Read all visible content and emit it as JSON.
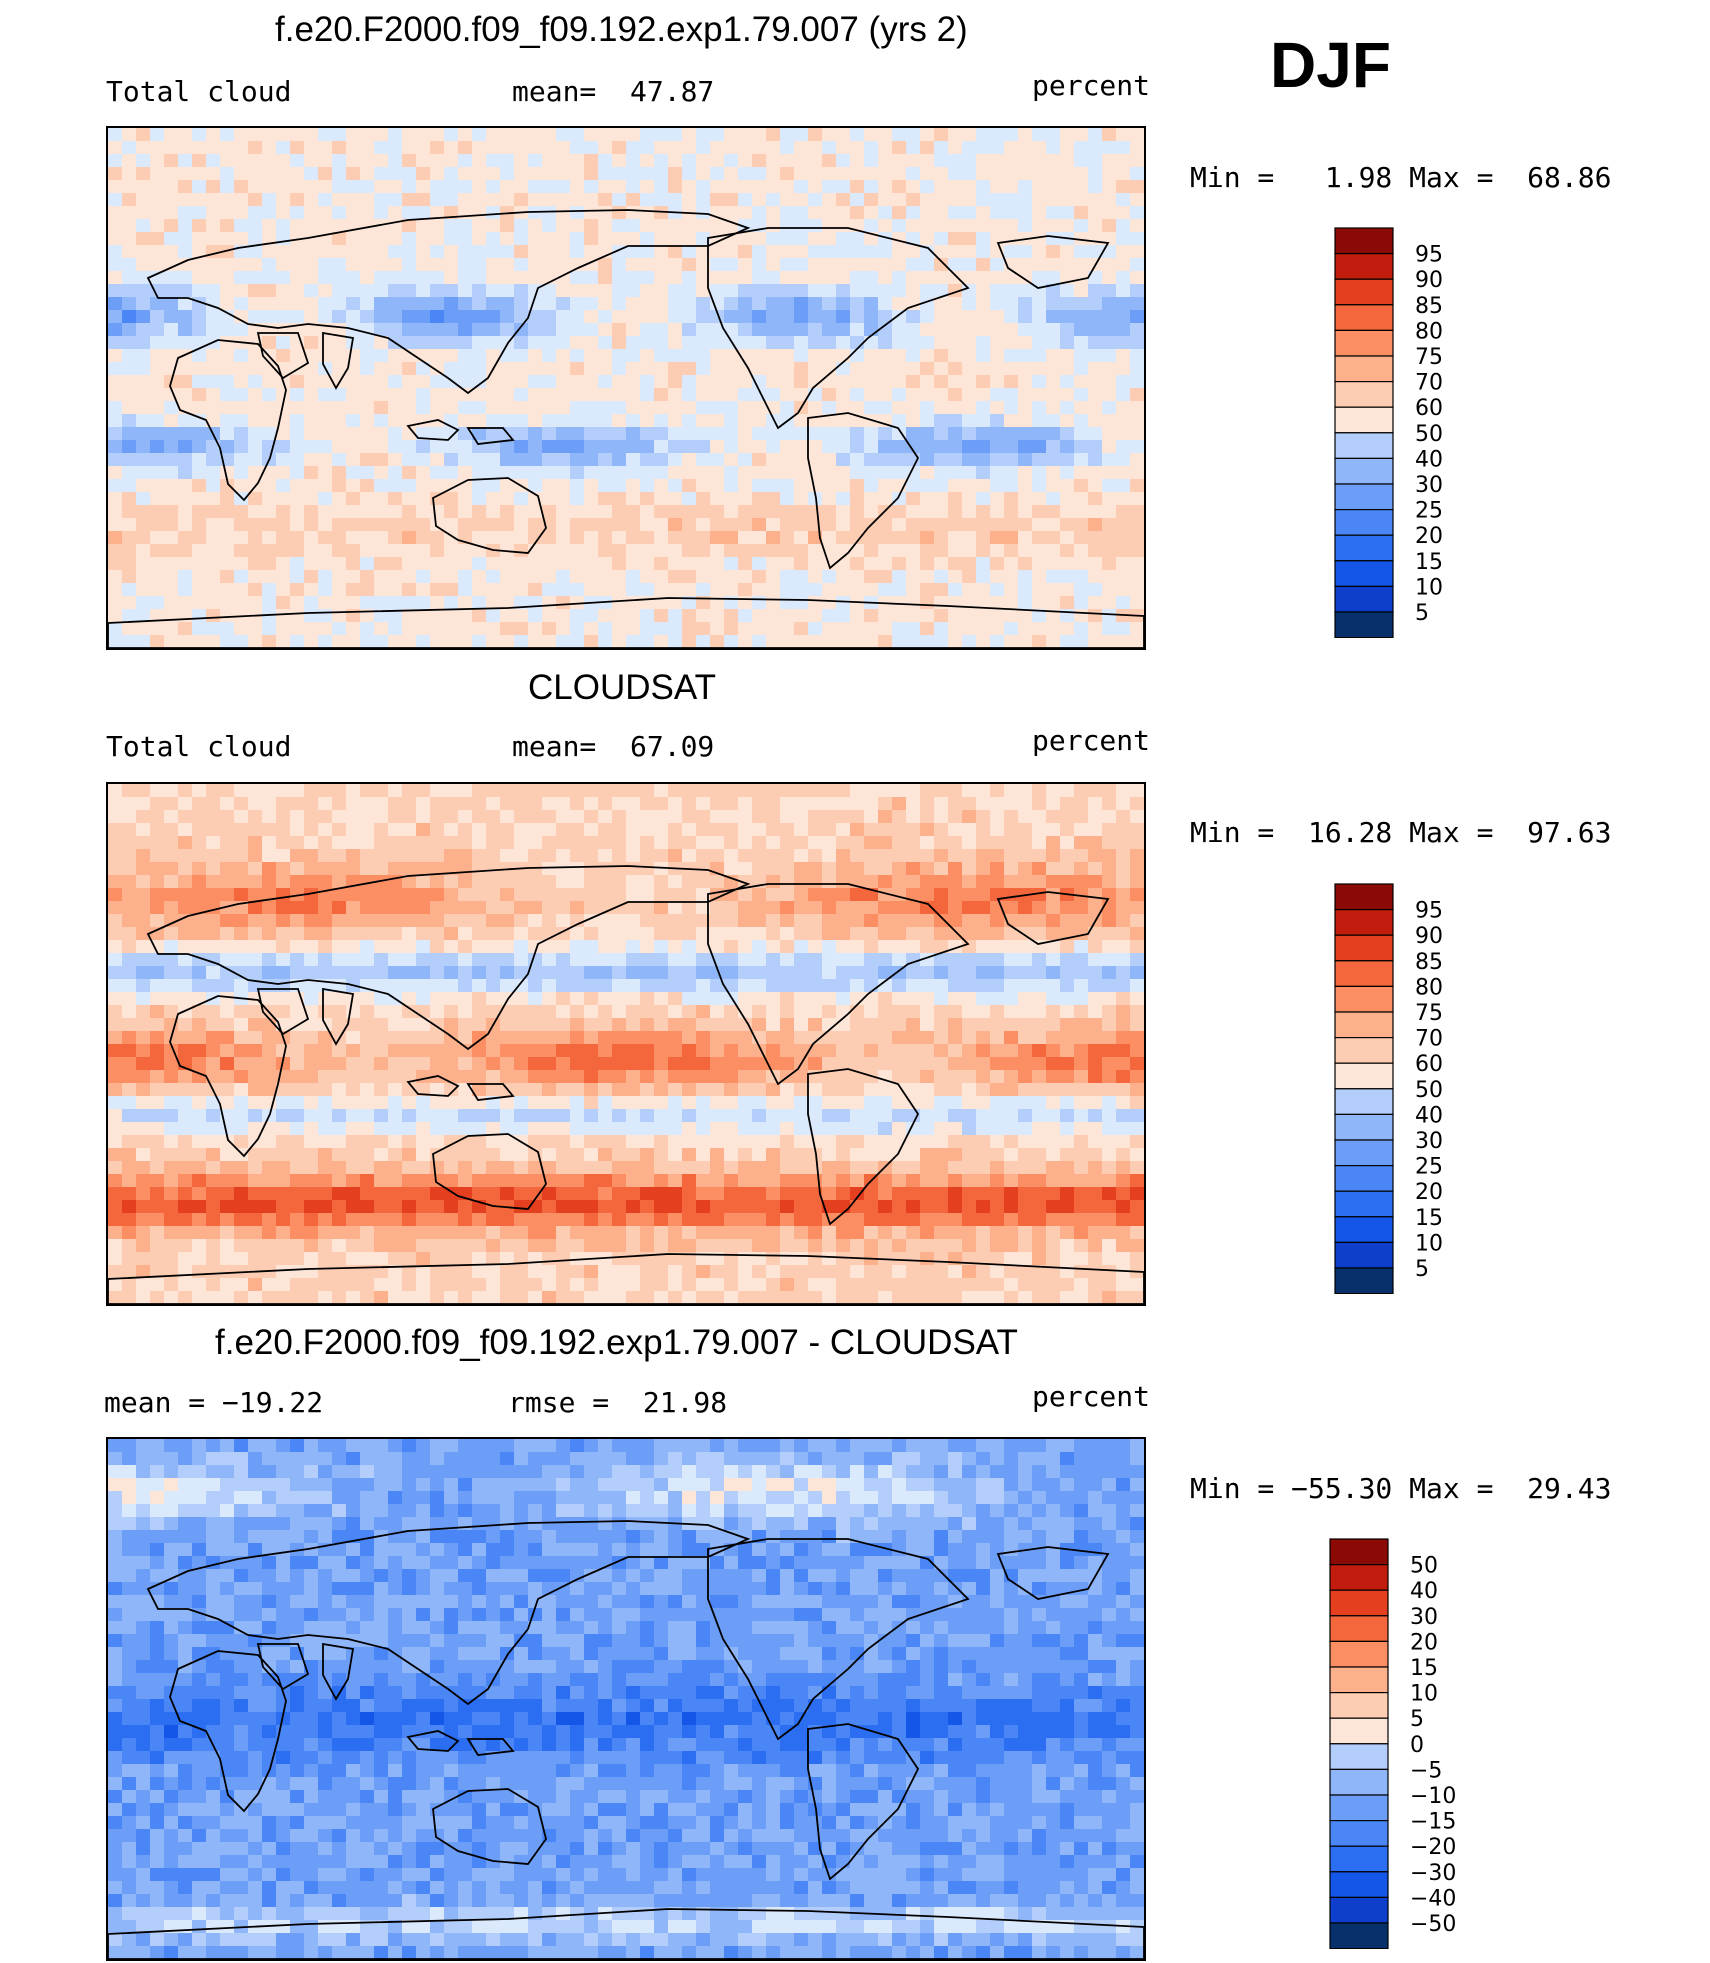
{
  "season": "DJF",
  "palette_pos": [
    "#08306b",
    "#0d3fcc",
    "#1457e8",
    "#2b6ef2",
    "#4a86f5",
    "#6c9ef7",
    "#8fb6f9",
    "#b3cefb",
    "#dbe9fd",
    "#fde6d8",
    "#fccdb2",
    "#fcb08c",
    "#fb8f63",
    "#f4673c",
    "#e43f1f",
    "#c11c0e",
    "#8c0a05"
  ],
  "panels": [
    {
      "title": "f.e20.F2000.f09_f09.192.exp1.79.007 (yrs 2)",
      "left_label": "Total cloud",
      "center_label": "mean=  47.87",
      "right_label": "percent",
      "min_max": "Min =   1.98 Max =  68.86",
      "colorbar": {
        "labels": [
          "95",
          "90",
          "85",
          "80",
          "75",
          "70",
          "60",
          "50",
          "40",
          "30",
          "25",
          "20",
          "15",
          "10",
          "5"
        ]
      },
      "field": "model"
    },
    {
      "title": "CLOUDSAT",
      "left_label": "Total cloud",
      "center_label": "mean=  67.09",
      "right_label": "percent",
      "min_max": "Min =  16.28 Max =  97.63",
      "colorbar": {
        "labels": [
          "95",
          "90",
          "85",
          "80",
          "75",
          "70",
          "60",
          "50",
          "40",
          "30",
          "25",
          "20",
          "15",
          "10",
          "5"
        ]
      },
      "field": "obs"
    },
    {
      "title": "f.e20.F2000.f09_f09.192.exp1.79.007 - CLOUDSAT",
      "left_label": "mean = −19.22",
      "center_label": "rmse =  21.98",
      "right_label": "percent",
      "min_max": "Min = −55.30 Max =  29.43",
      "colorbar": {
        "labels": [
          "50",
          "40",
          "30",
          "20",
          "15",
          "10",
          "5",
          "0",
          "−5",
          "−10",
          "−15",
          "−20",
          "−30",
          "−40",
          "−50"
        ]
      },
      "field": "diff"
    }
  ]
}
